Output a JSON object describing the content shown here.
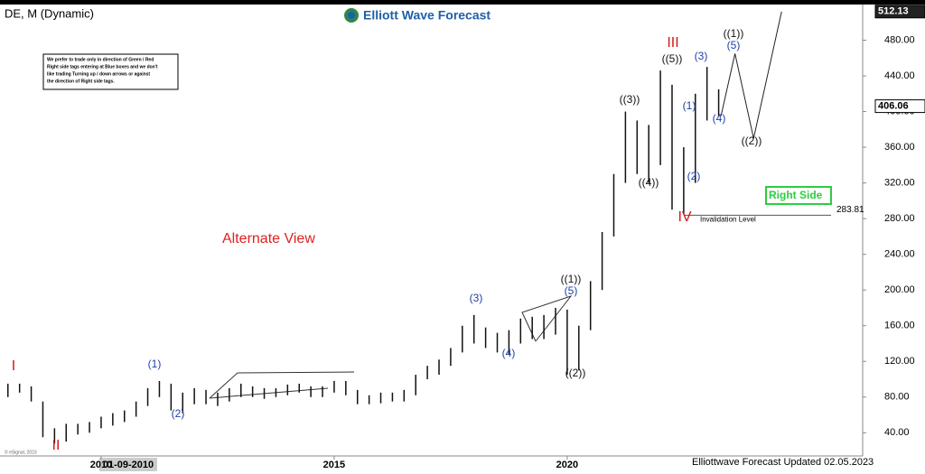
{
  "chart_data": {
    "type": "hlbars",
    "title": "DE, M (Dynamic)",
    "logo": "Elliott Wave Forecast",
    "note": [
      "We prefer to trade only in direction of Green / Red",
      "Right side tags entering at Blue boxes and we don't",
      "like trading Turning up / down arrows or against",
      "the direction of Right side tags."
    ],
    "alternate": "Alternate View",
    "right_side": "Right Side",
    "invalidation": {
      "value": 283.81,
      "label": "Invalidation Level"
    },
    "top_price": 512.13,
    "last_price": 406.06,
    "footer": "Elliottwave Forecast Updated 02.05.2023",
    "copyright": "© eSignal, 2023",
    "cursor_label": "01-09-2010",
    "waves": [
      "I",
      "II",
      "(1)",
      "(2)",
      "(3)",
      "(4)",
      "((1))",
      "(5)",
      "((2))",
      "((3))",
      "((4))",
      "((5))",
      "III",
      "IV",
      "(1)",
      "(2)",
      "(3)",
      "(4)",
      "((1))",
      "(5)",
      "((2))"
    ],
    "x": [
      2008.0,
      2008.25,
      2008.5,
      2008.75,
      2009.0,
      2009.25,
      2009.5,
      2009.75,
      2010.0,
      2010.25,
      2010.5,
      2010.75,
      2011.0,
      2011.25,
      2011.5,
      2011.75,
      2012.0,
      2012.25,
      2012.5,
      2012.75,
      2013.0,
      2013.25,
      2013.5,
      2013.75,
      2014.0,
      2014.25,
      2014.5,
      2014.75,
      2015.0,
      2015.25,
      2015.5,
      2015.75,
      2016.0,
      2016.25,
      2016.5,
      2016.75,
      2017.0,
      2017.25,
      2017.5,
      2017.75,
      2018.0,
      2018.25,
      2018.5,
      2018.75,
      2019.0,
      2019.25,
      2019.5,
      2019.75,
      2020.0,
      2020.25,
      2020.5,
      2020.75,
      2021.0,
      2021.25,
      2021.5,
      2021.75,
      2022.0,
      2022.25,
      2022.5,
      2022.75,
      2023.0,
      2023.25
    ],
    "low": [
      80,
      85,
      75,
      35,
      28,
      30,
      38,
      40,
      45,
      48,
      52,
      58,
      70,
      80,
      65,
      62,
      72,
      72,
      70,
      75,
      80,
      80,
      78,
      80,
      82,
      85,
      80,
      80,
      85,
      82,
      72,
      72,
      73,
      75,
      75,
      82,
      100,
      105,
      115,
      130,
      140,
      135,
      130,
      128,
      140,
      145,
      145,
      150,
      105,
      110,
      155,
      200,
      260,
      320,
      330,
      320,
      340,
      290,
      285,
      320,
      390,
      395
    ],
    "high": [
      95,
      95,
      92,
      75,
      45,
      50,
      50,
      52,
      58,
      62,
      65,
      75,
      90,
      98,
      95,
      85,
      90,
      88,
      85,
      90,
      95,
      92,
      90,
      90,
      94,
      95,
      92,
      92,
      98,
      98,
      88,
      82,
      85,
      85,
      88,
      105,
      115,
      122,
      135,
      160,
      172,
      158,
      152,
      155,
      168,
      170,
      172,
      180,
      178,
      160,
      210,
      265,
      330,
      400,
      390,
      385,
      446,
      430,
      360,
      420,
      450,
      425
    ],
    "projection": {
      "x": [
        2023.3,
        2023.6,
        2024.0,
        2024.6
      ],
      "y": [
        395,
        465,
        370,
        512
      ]
    },
    "xlim": [
      2007.83,
      2026.34
    ],
    "xticks": [
      2010,
      2015,
      2020
    ],
    "ylim": [
      14,
      520
    ],
    "yticks": [
      {
        "value": 40,
        "label": "40.00"
      },
      {
        "value": 80,
        "label": "80.00"
      },
      {
        "value": 120,
        "label": "120.00"
      },
      {
        "value": 160,
        "label": "160.00"
      },
      {
        "value": 200,
        "label": "200.00"
      },
      {
        "value": 240,
        "label": "240.00"
      },
      {
        "value": 280,
        "label": "280.00"
      },
      {
        "value": 320,
        "label": "320.00"
      },
      {
        "value": 360,
        "label": "360.00"
      },
      {
        "value": 400,
        "label": "400.00"
      },
      {
        "value": 440,
        "label": "440.00"
      },
      {
        "value": 480,
        "label": "480.00"
      }
    ],
    "color": "#111111"
  }
}
